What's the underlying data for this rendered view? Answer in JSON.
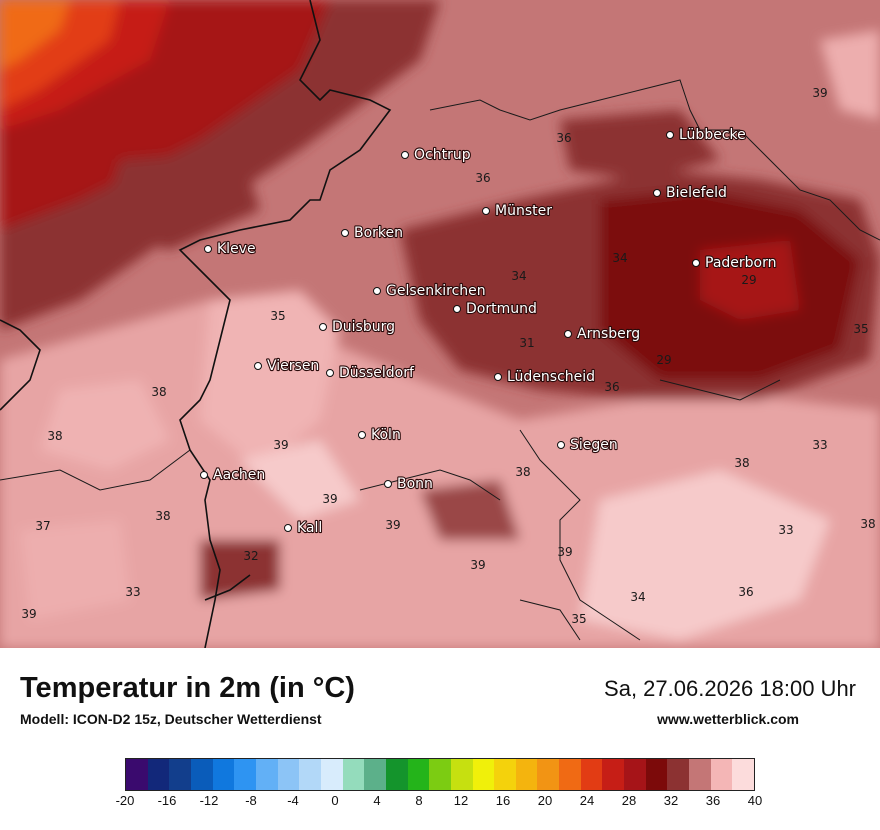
{
  "title": "Temperatur in 2m (in °C)",
  "model": "Modell: ICON-D2 15z, Deutscher Wetterdienst",
  "datetime": "Sa, 27.06.2026 18:00 Uhr",
  "website": "www.wetterblick.com",
  "legend": {
    "ticks": [
      "-20",
      "-16",
      "-12",
      "-8",
      "-4",
      "0",
      "4",
      "8",
      "12",
      "16",
      "20",
      "24",
      "28",
      "32",
      "36",
      "40"
    ],
    "colors": [
      "#3a0a6e",
      "#12287a",
      "#123e8c",
      "#0a5cba",
      "#1078de",
      "#2e94f2",
      "#62b0f6",
      "#8cc4f6",
      "#b2d8f8",
      "#d8ecfc",
      "#94dcbc",
      "#5cb08a",
      "#14942c",
      "#24b41a",
      "#7ccc12",
      "#c6e010",
      "#f0f00a",
      "#f4d20c",
      "#f4b40e",
      "#f29414",
      "#f06a14",
      "#e23c14",
      "#c61e16",
      "#a61418",
      "#7c0a0a",
      "#8c3232",
      "#c47676",
      "#f4b6b6",
      "#fcdcdc"
    ]
  },
  "cities": [
    "Ochtrup",
    "Lübbecke",
    "Bielefeld",
    "Münster",
    "Borken",
    "Kleve",
    "Paderborn",
    "Gelsenkirchen",
    "Dortmund",
    "Duisburg",
    "Arnsberg",
    "Viersen",
    "Düsseldorf",
    "Lüdenscheid",
    "Köln",
    "Siegen",
    "Aachen",
    "Bonn",
    "Kall"
  ],
  "isotherm_labels": [
    "39",
    "36",
    "36",
    "34",
    "34",
    "29",
    "35",
    "31",
    "35",
    "29",
    "38",
    "36",
    "38",
    "39",
    "33",
    "38",
    "39",
    "38",
    "37",
    "38",
    "33",
    "39",
    "38",
    "32",
    "39",
    "39",
    "33",
    "36",
    "34",
    "39",
    "35"
  ]
}
